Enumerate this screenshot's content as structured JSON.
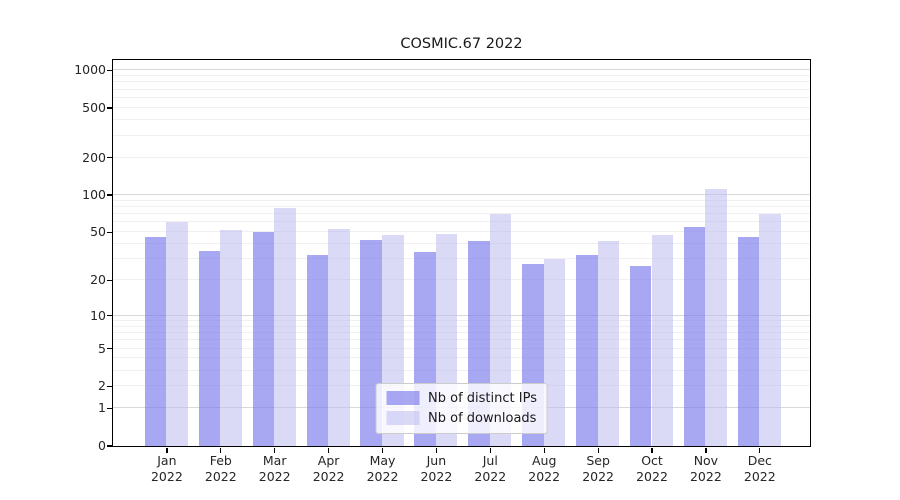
{
  "chart_data": {
    "type": "bar",
    "title": "COSMIC.67 2022",
    "yscale": "log1p",
    "ylim": [
      0,
      1210
    ],
    "yticks": [
      0,
      1,
      2,
      5,
      10,
      20,
      50,
      100,
      200,
      500,
      1000
    ],
    "gridlines": {
      "major": [
        1,
        10,
        100,
        1000
      ],
      "minor": [
        2,
        3,
        4,
        5,
        6,
        7,
        8,
        9,
        20,
        30,
        40,
        50,
        60,
        70,
        80,
        90,
        200,
        300,
        400,
        500,
        600,
        700,
        800,
        900
      ]
    },
    "categories": [
      "Jan",
      "Feb",
      "Mar",
      "Apr",
      "May",
      "Jun",
      "Jul",
      "Aug",
      "Sep",
      "Oct",
      "Nov",
      "Dec"
    ],
    "year_label": "2022",
    "series": [
      {
        "name": "Nb of distinct IPs",
        "color": "rgba(122,122,235,0.65)",
        "values": [
          45,
          35,
          50,
          32,
          43,
          34,
          42,
          27,
          32,
          26,
          55,
          45
        ]
      },
      {
        "name": "Nb of downloads",
        "color": "rgba(187,187,240,0.55)",
        "values": [
          60,
          52,
          78,
          53,
          47,
          48,
          70,
          30,
          42,
          47,
          110,
          70
        ]
      }
    ],
    "legend": {
      "position": "lower center",
      "entries": [
        "Nb of distinct IPs",
        "Nb of downloads"
      ]
    },
    "grid": true
  },
  "colors": {
    "grid_major": "#d9d9d9",
    "grid_minor": "#f0f0f0",
    "spine": "#000000",
    "bar_dark": "rgba(122,122,235,0.65)",
    "bar_light": "rgba(187,187,240,0.55)",
    "legend_border": "#cccccc",
    "legend_bg": "rgba(255,255,255,0.8)"
  }
}
